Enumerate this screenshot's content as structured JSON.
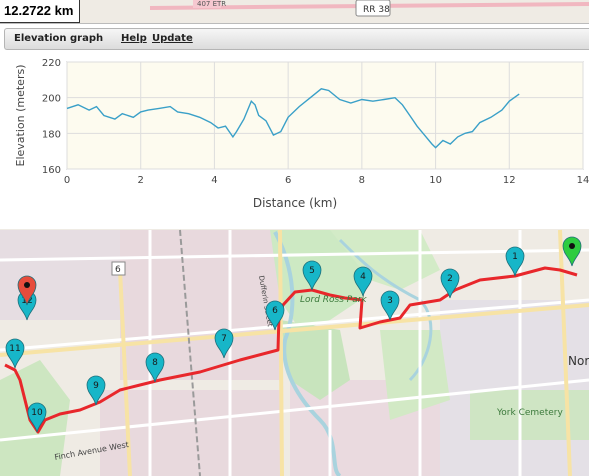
{
  "distance_readout": "12.2722 km",
  "panel": {
    "title": "Elevation graph",
    "help_label": "Help",
    "update_label": "Update"
  },
  "map": {
    "road_labels": [
      "407 ETR",
      "RR 38",
      "Finch Avenue West",
      "Dufferin Street"
    ],
    "route_color": "#e8272b",
    "waypoints": [
      "1",
      "2",
      "3",
      "4",
      "5",
      "6",
      "7",
      "8",
      "9",
      "10",
      "11",
      "12"
    ],
    "area_labels": [
      "Lord Ross Park",
      "York Cemetery",
      "Nor",
      "6"
    ],
    "start_marker_color": "#2ecc40",
    "end_marker_color": "#e74c3c",
    "waypoint_color": "#17b6c8"
  },
  "chart_data": {
    "type": "line",
    "title": "",
    "xlabel": "Distance (km)",
    "ylabel": "Elevation (meters)",
    "xlim": [
      0,
      14
    ],
    "ylim": [
      160,
      220
    ],
    "xticks": [
      0,
      2,
      4,
      6,
      8,
      10,
      12,
      14
    ],
    "yticks": [
      160,
      180,
      200,
      220
    ],
    "grid": true,
    "line_color": "#3aa0c8",
    "series": [
      {
        "name": "",
        "x": [
          0,
          0.3,
          0.6,
          0.8,
          1.0,
          1.3,
          1.5,
          1.8,
          2.0,
          2.2,
          2.5,
          2.8,
          3.0,
          3.3,
          3.6,
          3.9,
          4.1,
          4.3,
          4.5,
          4.6,
          4.8,
          5.0,
          5.1,
          5.2,
          5.4,
          5.6,
          5.8,
          6.0,
          6.3,
          6.6,
          6.9,
          7.1,
          7.4,
          7.7,
          8.0,
          8.3,
          8.6,
          8.9,
          9.1,
          9.3,
          9.5,
          9.7,
          9.9,
          10.0,
          10.2,
          10.4,
          10.6,
          10.8,
          11.0,
          11.2,
          11.5,
          11.8,
          12.0,
          12.27
        ],
        "y": [
          194,
          196,
          193,
          195,
          190,
          188,
          191,
          189,
          192,
          193,
          194,
          195,
          192,
          191,
          189,
          186,
          183,
          184,
          178,
          181,
          188,
          198,
          196,
          190,
          187,
          179,
          181,
          189,
          195,
          200,
          205,
          204,
          199,
          197,
          199,
          198,
          199,
          200,
          196,
          190,
          184,
          179,
          174,
          172,
          176,
          174,
          178,
          180,
          181,
          186,
          189,
          193,
          198,
          202
        ]
      }
    ]
  }
}
